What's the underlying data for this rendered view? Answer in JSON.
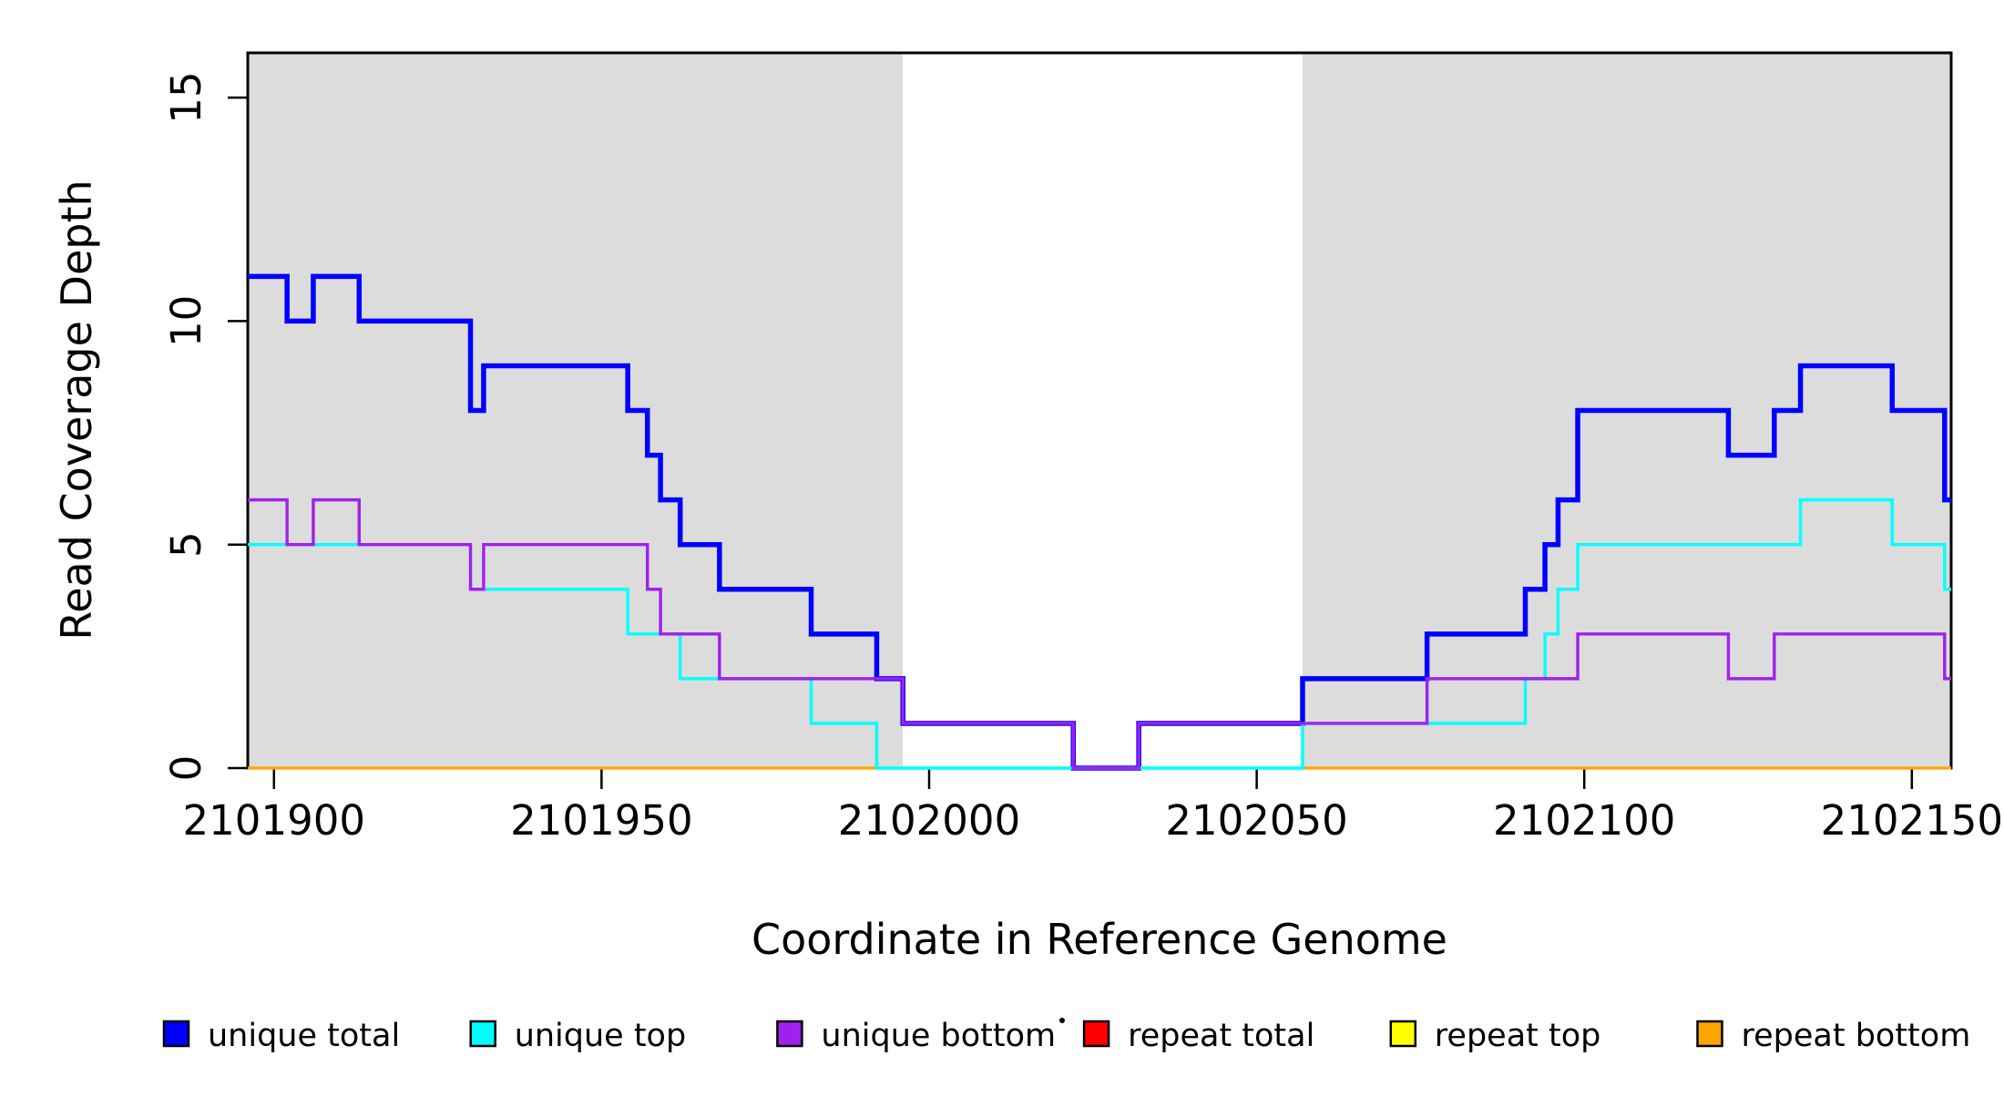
{
  "page": {
    "background": "#FFFFFF"
  },
  "chart_data": {
    "type": "step",
    "title": "",
    "xlabel": "Coordinate in Reference Genome",
    "ylabel": "Read Coverage Depth",
    "xlim": [
      2101896,
      2102156
    ],
    "ylim": [
      0,
      16
    ],
    "x_ticks": [
      2101900,
      2101950,
      2102000,
      2102050,
      2102100,
      2102150
    ],
    "y_ticks": [
      0,
      5,
      10,
      15
    ],
    "grid": false,
    "shaded_regions": [
      {
        "x0": 2101896,
        "x1": 2101996,
        "color": "#DCDCDC"
      },
      {
        "x0": 2102057,
        "x1": 2102156,
        "color": "#DCDCDC"
      }
    ],
    "series": [
      {
        "name": "repeat total",
        "color": "#FF0000",
        "width": 3,
        "steps": [
          [
            2101896,
            0
          ]
        ]
      },
      {
        "name": "repeat top",
        "color": "#FFFF00",
        "width": 3,
        "steps": [
          [
            2101896,
            0
          ]
        ]
      },
      {
        "name": "repeat bottom",
        "color": "#FFA500",
        "width": 3.2,
        "steps": [
          [
            2101896,
            0
          ]
        ]
      },
      {
        "name": "unique total",
        "color": "#0000FF",
        "width": 5.5,
        "steps": [
          [
            2101896,
            11
          ],
          [
            2101902,
            10
          ],
          [
            2101906,
            11
          ],
          [
            2101913,
            10
          ],
          [
            2101930,
            8
          ],
          [
            2101932,
            9
          ],
          [
            2101954,
            8
          ],
          [
            2101957,
            7
          ],
          [
            2101959,
            6
          ],
          [
            2101962,
            5
          ],
          [
            2101968,
            4
          ],
          [
            2101982,
            3
          ],
          [
            2101992,
            2
          ],
          [
            2101996,
            1
          ],
          [
            2102022,
            0
          ],
          [
            2102032,
            1
          ],
          [
            2102057,
            2
          ],
          [
            2102076,
            3
          ],
          [
            2102091,
            4
          ],
          [
            2102094,
            5
          ],
          [
            2102096,
            6
          ],
          [
            2102099,
            8
          ],
          [
            2102122,
            7
          ],
          [
            2102129,
            8
          ],
          [
            2102133,
            9
          ],
          [
            2102147,
            8
          ],
          [
            2102155,
            6
          ]
        ]
      },
      {
        "name": "unique top",
        "color": "#00FFFF",
        "width": 3.4,
        "steps": [
          [
            2101896,
            5
          ],
          [
            2101930,
            4
          ],
          [
            2101954,
            3
          ],
          [
            2101962,
            2
          ],
          [
            2101982,
            1
          ],
          [
            2101992,
            0
          ],
          [
            2102057,
            1
          ],
          [
            2102091,
            2
          ],
          [
            2102094,
            3
          ],
          [
            2102096,
            4
          ],
          [
            2102099,
            5
          ],
          [
            2102133,
            6
          ],
          [
            2102147,
            5
          ],
          [
            2102155,
            4
          ]
        ]
      },
      {
        "name": "unique bottom",
        "color": "#A020F0",
        "width": 3.4,
        "steps": [
          [
            2101896,
            6
          ],
          [
            2101902,
            5
          ],
          [
            2101906,
            6
          ],
          [
            2101913,
            5
          ],
          [
            2101930,
            4
          ],
          [
            2101932,
            5
          ],
          [
            2101957,
            4
          ],
          [
            2101959,
            3
          ],
          [
            2101968,
            2
          ],
          [
            2101996,
            1
          ],
          [
            2102022,
            0
          ],
          [
            2102032,
            1
          ],
          [
            2102076,
            2
          ],
          [
            2102099,
            3
          ],
          [
            2102122,
            2
          ],
          [
            2102129,
            3
          ],
          [
            2102155,
            2
          ]
        ]
      }
    ],
    "legend": {
      "position": "bottom",
      "entries": [
        {
          "label": "unique total",
          "color": "#0000FF"
        },
        {
          "label": "unique top",
          "color": "#00FFFF"
        },
        {
          "label": "unique bottom",
          "color": "#A020F0"
        },
        {
          "label": "repeat total",
          "color": "#FF0000"
        },
        {
          "label": "repeat top",
          "color": "#FFFF00"
        },
        {
          "label": "repeat bottom",
          "color": "#FFA500"
        }
      ]
    }
  }
}
